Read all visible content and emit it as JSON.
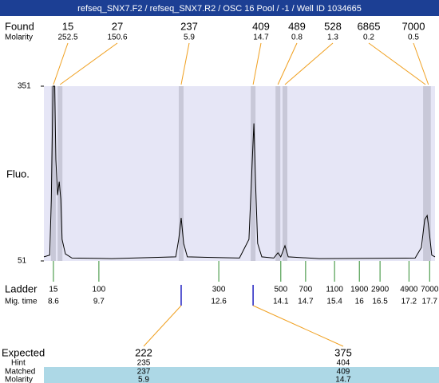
{
  "chart_data": {
    "type": "line",
    "title": "refseq_SNX7.F2 / refseq_SNX7.R2 / OSC 16 Pool / -1 / Well ID 1034665",
    "found": {
      "label": "Found",
      "sizes": [
        15,
        27,
        237,
        409,
        489,
        528,
        6865,
        7000
      ],
      "molarity_label": "Molarity",
      "molarity": [
        252.5,
        150.6,
        5.9,
        14.7,
        0.8,
        1.3,
        0.2,
        0.5
      ],
      "times": [
        8.6,
        8.76,
        11.69,
        13.43,
        14.03,
        14.2,
        17.6,
        17.67
      ]
    },
    "y_label": "Fluo.",
    "ylim": [
      51,
      351
    ],
    "yticks": [
      51,
      351
    ],
    "xlim": [
      8.37,
      17.83
    ],
    "x": [
      8.37,
      8.51,
      8.55,
      8.59,
      8.63,
      8.66,
      8.7,
      8.74,
      8.78,
      8.81,
      8.89,
      9.05,
      10.01,
      11.56,
      11.63,
      11.69,
      11.75,
      11.84,
      13.1,
      13.33,
      13.41,
      13.45,
      13.49,
      13.54,
      13.64,
      13.93,
      14.03,
      14.1,
      14.2,
      14.28,
      15.03,
      17.35,
      17.5,
      17.58,
      17.64,
      17.69,
      17.75,
      17.83
    ],
    "values": [
      58,
      61,
      157,
      351,
      351,
      225,
      164,
      187,
      157,
      88,
      63,
      56,
      55,
      58,
      88,
      125,
      81,
      58,
      56,
      88,
      225,
      287,
      184,
      81,
      58,
      56,
      65,
      58,
      77,
      58,
      55,
      56,
      74,
      122,
      129,
      102,
      61,
      58
    ],
    "ladder": {
      "label": "Ladder",
      "sizes": [
        15,
        100,
        300,
        500,
        700,
        1100,
        1900,
        2900,
        4900,
        7000
      ],
      "time_label": "Mig. time",
      "times": [
        8.6,
        9.7,
        12.6,
        14.1,
        14.7,
        15.4,
        16,
        16.5,
        17.2,
        17.7
      ]
    },
    "expected": {
      "label": "Expected",
      "sizes": [
        222,
        375
      ],
      "hint_label": "Hint",
      "hint": [
        235,
        404
      ],
      "matched_label": "Matched",
      "matched": [
        237,
        409
      ],
      "molarity_label": "Molarity",
      "molarity": [
        5.9,
        14.7
      ],
      "times": [
        11.69,
        13.43
      ]
    },
    "colors": {
      "trace": "#000000",
      "found": "#f0a020",
      "ladder": "#2e8b2e",
      "expected": "#f0a020",
      "marker": "#2020c0",
      "band": "#c8c8d8",
      "plot": "#e6e6f6",
      "title_bar": "#1c3f94",
      "matched_bg": "#add8e6"
    }
  }
}
